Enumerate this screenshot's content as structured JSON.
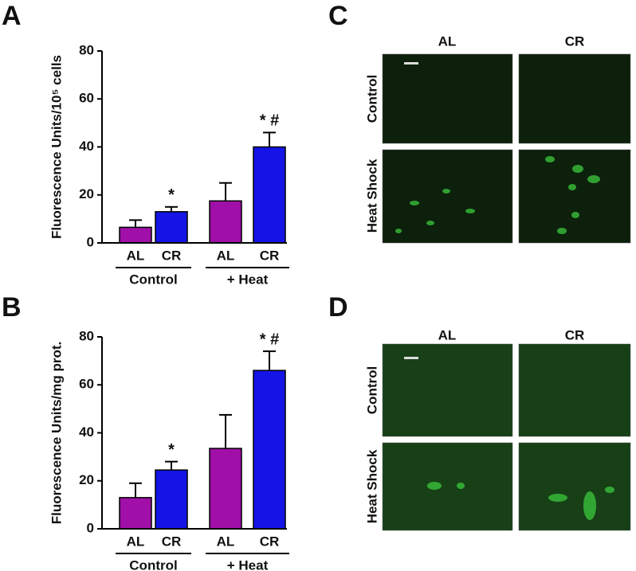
{
  "chart_data": [
    {
      "type": "bar",
      "panel": "A",
      "y_label": "Fluorescence Units/10⁵ cells",
      "categories": [
        "AL",
        "CR",
        "AL",
        "CR"
      ],
      "groups": [
        "Control",
        "+ Heat"
      ],
      "values": [
        6.5,
        13,
        17.5,
        40
      ],
      "errors": [
        3,
        2,
        7.5,
        6
      ],
      "colors": [
        "#a010a8",
        "#1414e6",
        "#a010a8",
        "#1414e6"
      ],
      "annotations": [
        null,
        "*",
        null,
        "* #"
      ],
      "ylim": [
        0,
        80
      ],
      "yticks": [
        0,
        20,
        40,
        60,
        80
      ]
    },
    {
      "type": "bar",
      "panel": "B",
      "y_label": "Fluorescence Units/mg prot.",
      "categories": [
        "AL",
        "CR",
        "AL",
        "CR"
      ],
      "groups": [
        "Control",
        "+ Heat"
      ],
      "values": [
        13,
        24.5,
        33.5,
        66
      ],
      "errors": [
        6,
        3.5,
        14,
        8
      ],
      "colors": [
        "#a010a8",
        "#1414e6",
        "#a010a8",
        "#1414e6"
      ],
      "annotations": [
        null,
        "*",
        null,
        "* #"
      ],
      "ylim": [
        0,
        80
      ],
      "yticks": [
        0,
        20,
        40,
        60,
        80
      ]
    }
  ],
  "images": [
    {
      "panel": "C",
      "columns": [
        "AL",
        "CR"
      ],
      "rows": [
        "Control",
        "Heat Shock"
      ]
    },
    {
      "panel": "D",
      "columns": [
        "AL",
        "CR"
      ],
      "rows": [
        "Control",
        "Heat Shock"
      ]
    }
  ]
}
